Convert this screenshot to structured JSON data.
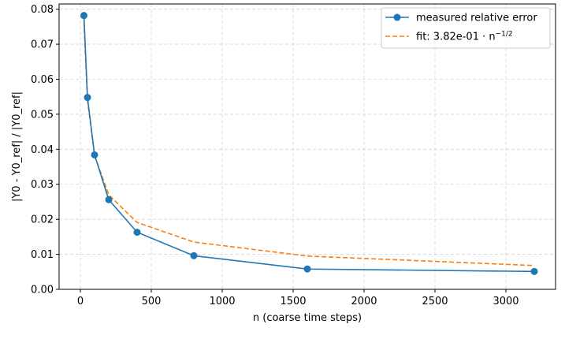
{
  "chart_data": {
    "type": "line",
    "title": "",
    "xlabel": "n (coarse time steps)",
    "ylabel": "|Y0 - Y0_ref| / |Y0_ref|",
    "xlim": [
      -150,
      3350
    ],
    "ylim": [
      0,
      0.0815
    ],
    "xticks": [
      0,
      500,
      1000,
      1500,
      2000,
      2500,
      3000
    ],
    "yticks": [
      0.0,
      0.01,
      0.02,
      0.03,
      0.04,
      0.05,
      0.06,
      0.07,
      0.08
    ],
    "grid": true,
    "legend_position": "top-right",
    "x": [
      25,
      50,
      100,
      200,
      400,
      800,
      1600,
      3200
    ],
    "series": [
      {
        "name": "measured relative error",
        "values": [
          0.0782,
          0.0548,
          0.0384,
          0.0256,
          0.0163,
          0.0096,
          0.0058,
          0.0051
        ],
        "color": "#1f77b4",
        "style": "solid-markers"
      },
      {
        "name": "fit: 3.82e-01 · n",
        "name_superscript": "−1/2",
        "values": [
          0.0764,
          0.054,
          0.0382,
          0.027,
          0.0191,
          0.0135,
          0.0095,
          0.0068
        ],
        "color": "#ff7f0e",
        "style": "dashed"
      }
    ]
  }
}
